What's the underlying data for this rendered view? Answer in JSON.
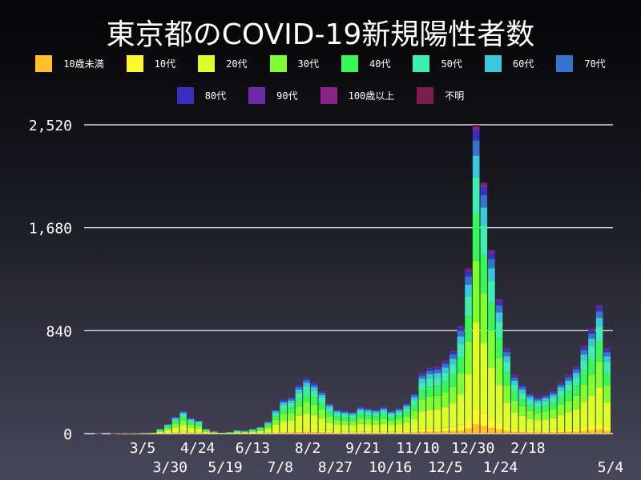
{
  "chart_data": {
    "type": "bar",
    "stacked": true,
    "title": "東京都のCOVID-19新規陽性者数",
    "xlabel": "",
    "ylabel": "",
    "ylim": [
      0,
      2520
    ],
    "yticks": [
      0,
      840,
      1680,
      2520
    ],
    "ytick_labels": [
      "0",
      "840",
      "1,680",
      "2,520"
    ],
    "xtick_labels": [
      "3/5",
      "3/30",
      "4/24",
      "5/19",
      "6/13",
      "7/8",
      "8/2",
      "8/27",
      "9/21",
      "10/16",
      "11/10",
      "12/5",
      "12/30",
      "1/24",
      "2/18",
      "5/4"
    ],
    "xtick_dates": [
      "2020-03-05",
      "2020-03-30",
      "2020-04-24",
      "2020-05-19",
      "2020-06-13",
      "2020-07-08",
      "2020-08-02",
      "2020-08-27",
      "2020-09-21",
      "2020-10-16",
      "2020-11-10",
      "2020-12-05",
      "2020-12-30",
      "2021-01-24",
      "2021-02-18",
      "2021-05-04"
    ],
    "grid": true,
    "legend_placement": "top",
    "x": [
      "2020-01-28",
      "2020-02-04",
      "2020-02-11",
      "2020-02-18",
      "2020-02-25",
      "2020-03-03",
      "2020-03-10",
      "2020-03-17",
      "2020-03-24",
      "2020-03-31",
      "2020-04-07",
      "2020-04-14",
      "2020-04-21",
      "2020-04-28",
      "2020-05-05",
      "2020-05-12",
      "2020-05-19",
      "2020-05-26",
      "2020-06-02",
      "2020-06-09",
      "2020-06-16",
      "2020-06-23",
      "2020-06-30",
      "2020-07-07",
      "2020-07-14",
      "2020-07-21",
      "2020-07-28",
      "2020-08-04",
      "2020-08-11",
      "2020-08-18",
      "2020-08-25",
      "2020-09-01",
      "2020-09-08",
      "2020-09-15",
      "2020-09-22",
      "2020-09-29",
      "2020-10-06",
      "2020-10-13",
      "2020-10-20",
      "2020-10-27",
      "2020-11-03",
      "2020-11-10",
      "2020-11-17",
      "2020-11-24",
      "2020-12-01",
      "2020-12-08",
      "2020-12-15",
      "2020-12-22",
      "2020-12-29",
      "2021-01-05",
      "2021-01-12",
      "2021-01-19",
      "2021-01-26",
      "2021-02-02",
      "2021-02-09",
      "2021-02-16",
      "2021-02-23",
      "2021-03-02",
      "2021-03-09",
      "2021-03-16",
      "2021-03-23",
      "2021-03-30",
      "2021-04-06",
      "2021-04-13",
      "2021-04-20",
      "2021-04-27",
      "2021-05-04"
    ],
    "totals": [
      1,
      0,
      1,
      3,
      3,
      5,
      8,
      10,
      40,
      80,
      140,
      190,
      130,
      110,
      40,
      20,
      10,
      15,
      30,
      25,
      40,
      55,
      100,
      200,
      280,
      300,
      400,
      460,
      420,
      350,
      250,
      200,
      190,
      180,
      220,
      210,
      200,
      220,
      190,
      210,
      250,
      330,
      500,
      540,
      550,
      600,
      680,
      880,
      1350,
      2520,
      2050,
      1500,
      1100,
      700,
      480,
      400,
      330,
      300,
      320,
      350,
      420,
      480,
      550,
      720,
      860,
      1050,
      700
    ],
    "series": [
      {
        "name": "10歳未満",
        "color": "#ffc02a",
        "share": 0.03
      },
      {
        "name": "10代",
        "color": "#fff72a",
        "share": 0.05
      },
      {
        "name": "20代",
        "color": "#dcff2a",
        "share": 0.28
      },
      {
        "name": "30代",
        "color": "#7dff30",
        "share": 0.2
      },
      {
        "name": "40代",
        "color": "#38f756",
        "share": 0.15
      },
      {
        "name": "50代",
        "color": "#3deeae",
        "share": 0.12
      },
      {
        "name": "60代",
        "color": "#3ac8dc",
        "share": 0.07
      },
      {
        "name": "70代",
        "color": "#3673cf",
        "share": 0.05
      },
      {
        "name": "80代",
        "color": "#3a30bf",
        "share": 0.03
      },
      {
        "name": "90代",
        "color": "#6e2aa8",
        "share": 0.012
      },
      {
        "name": "100歳以上",
        "color": "#8a2288",
        "share": 0.0005
      },
      {
        "name": "不明",
        "color": "#7a1f4a",
        "share": 0.0075
      }
    ]
  }
}
